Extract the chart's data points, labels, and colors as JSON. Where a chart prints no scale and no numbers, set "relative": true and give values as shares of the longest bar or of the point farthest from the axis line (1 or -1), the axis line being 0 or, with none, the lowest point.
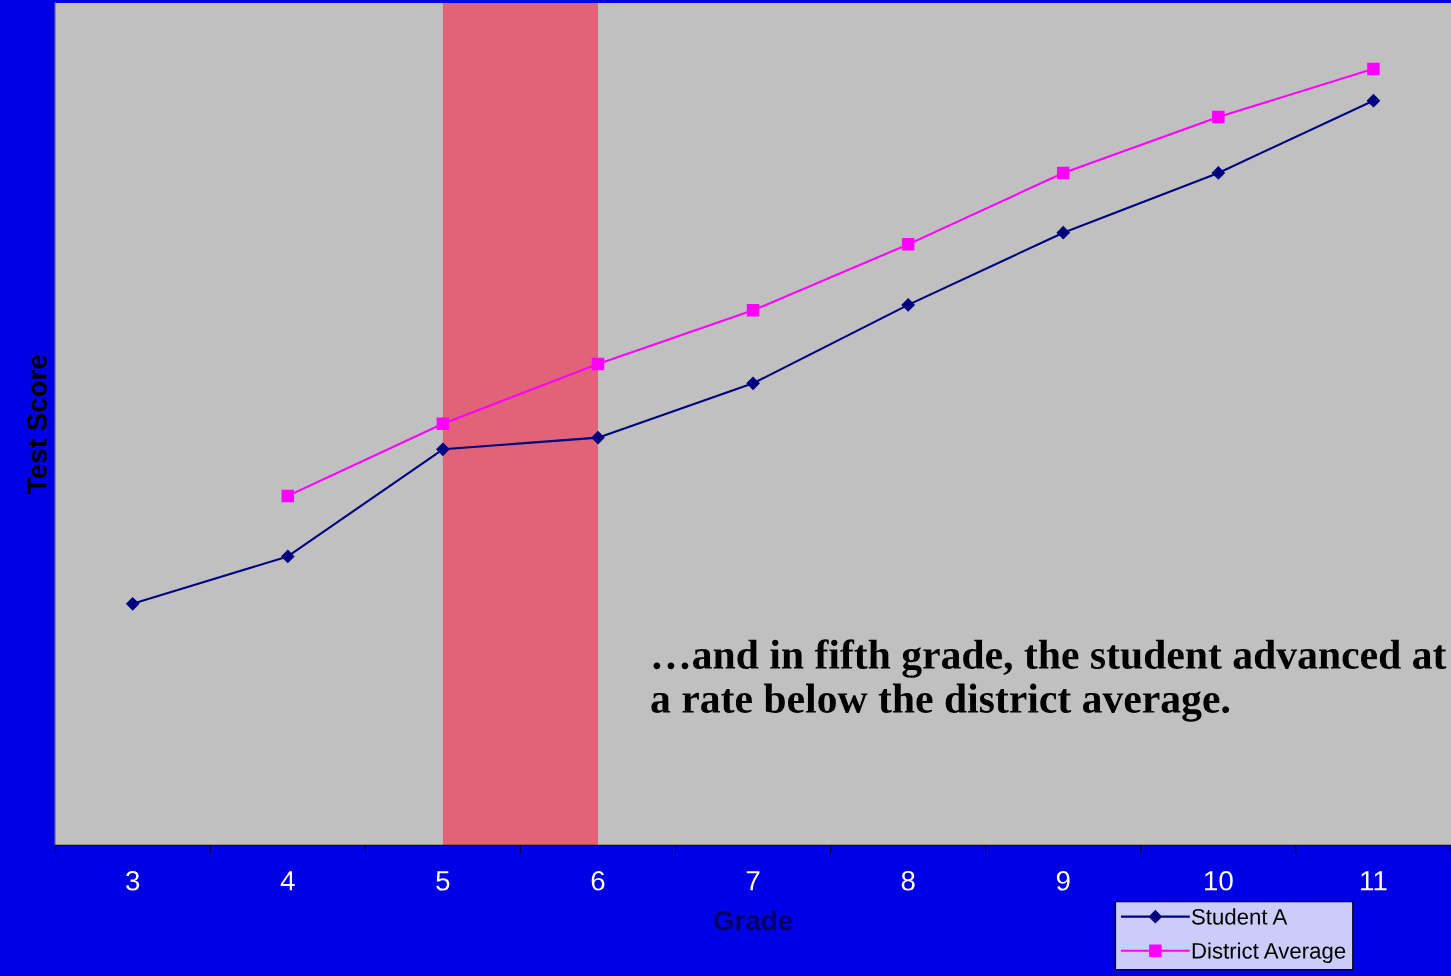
{
  "chart_data": {
    "type": "line",
    "relative": true,
    "xlabel": "Grade",
    "ylabel": "Test Score",
    "categories": [
      "3",
      "4",
      "5",
      "6",
      "7",
      "8",
      "9",
      "10",
      "11"
    ],
    "series": [
      {
        "name": "Student A",
        "color": "#000080",
        "marker": "diamond",
        "values": [
          0.311,
          0.372,
          0.51,
          0.525,
          0.595,
          0.696,
          0.789,
          0.866,
          0.959
        ]
      },
      {
        "name": "District Average",
        "color": "#ff00ff",
        "marker": "square",
        "values": [
          null,
          0.45,
          0.543,
          0.62,
          0.689,
          0.774,
          0.866,
          0.938,
          1.0
        ]
      }
    ],
    "bands": [
      {
        "axis": "x",
        "from": "5",
        "to": "6",
        "color": "#e06377"
      }
    ],
    "annotations": [
      "…and in fifth grade, the student advanced at a rate below the district average."
    ],
    "legend": "bottom right",
    "grid": false,
    "line_style": "solid"
  }
}
